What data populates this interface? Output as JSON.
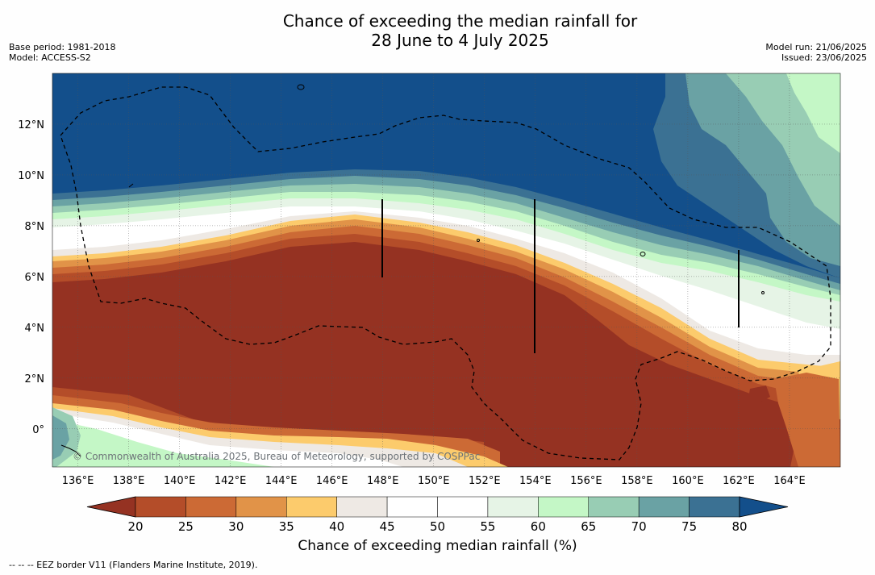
{
  "title": {
    "line1": "Chance of exceeding the median rainfall for",
    "line2": "28 June to 4 July 2025"
  },
  "meta": {
    "base_period": "Base period: 1981-2018",
    "model": "Model: ACCESS-S2",
    "model_run": "Model run: 21/06/2025",
    "issued": "Issued: 23/06/2025"
  },
  "map": {
    "lon_ticks": [
      "136°E",
      "138°E",
      "140°E",
      "142°E",
      "144°E",
      "146°E",
      "148°E",
      "150°E",
      "152°E",
      "154°E",
      "156°E",
      "158°E",
      "160°E",
      "162°E",
      "164°E"
    ],
    "lat_ticks": [
      "12°N",
      "10°N",
      "8°N",
      "6°N",
      "4°N",
      "2°N",
      "0°"
    ],
    "lon_range": [
      135,
      166
    ],
    "lat_range": [
      -1.5,
      14
    ],
    "watermark": "© Commonwealth of Australia 2025, Bureau of Meteorology, supported by COSPPac",
    "grid": true
  },
  "colorbar": {
    "title": "Chance of exceeding median rainfall (%)",
    "labels": [
      "20",
      "25",
      "30",
      "35",
      "40",
      "45",
      "50",
      "55",
      "60",
      "65",
      "70",
      "75",
      "80"
    ],
    "colors": [
      "#953222",
      "#b44d29",
      "#cc6a35",
      "#e19348",
      "#fccb6c",
      "#eee9e4",
      "#ffffff",
      "#ffffff",
      "#e6f4e6",
      "#c4f7c6",
      "#98cdb4",
      "#6aa2a4",
      "#3b7193",
      "#134f8b"
    ]
  },
  "footer": {
    "eez_note": "-- -- -- EEZ border V11 (Flanders Marine Institute, 2019)."
  }
}
